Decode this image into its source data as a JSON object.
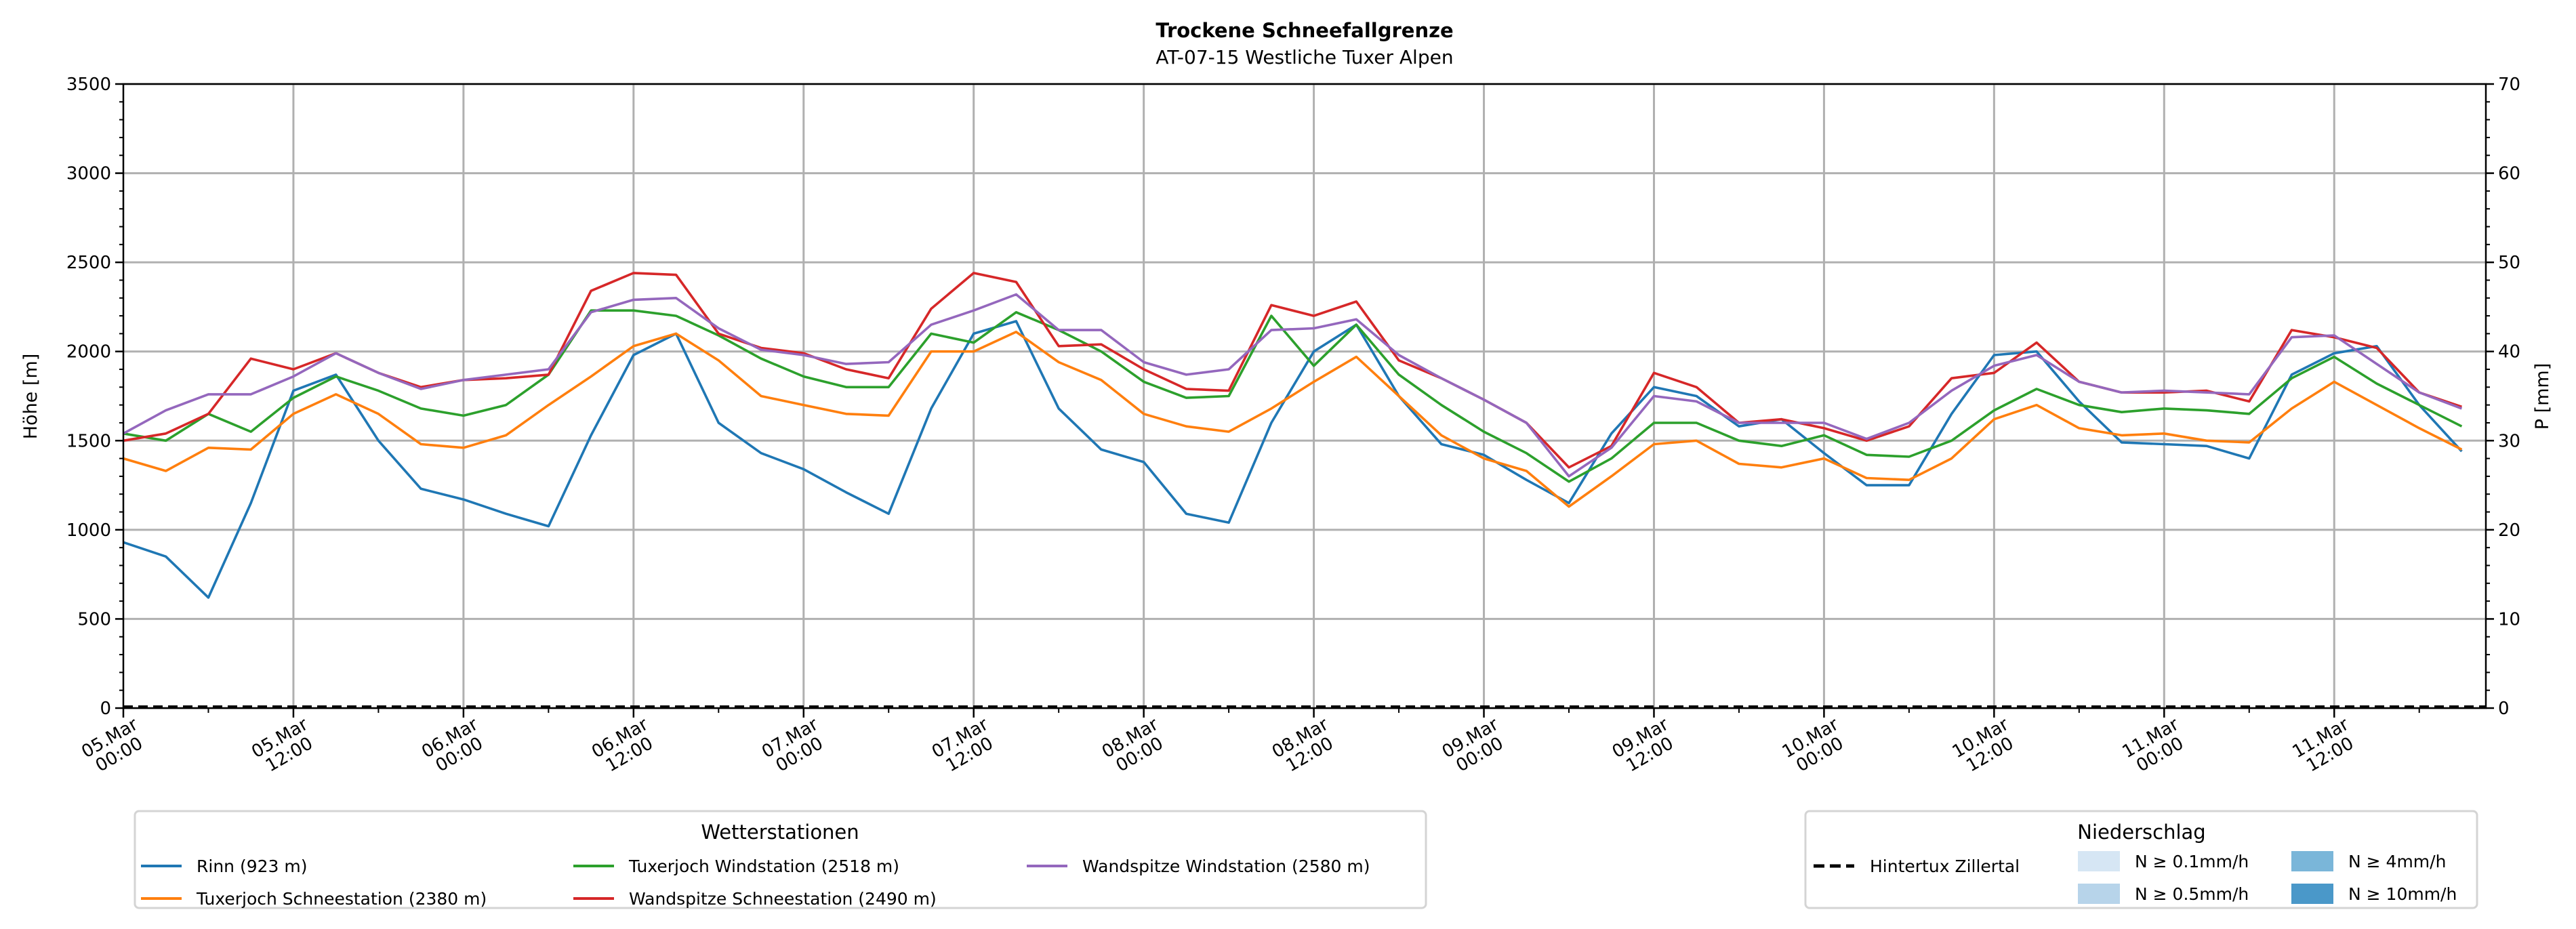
{
  "chart_data": {
    "type": "line",
    "title": "Trockene Schneefallgrenze",
    "subtitle": "AT-07-15 Westliche Tuxer Alpen",
    "ylabel": "Höhe [m]",
    "ylabel_right": "P [mm]",
    "ylim": [
      0,
      3500
    ],
    "ylim_right": [
      0,
      70
    ],
    "yticks": [
      "0",
      "500",
      "1000",
      "1500",
      "2000",
      "2500",
      "3000",
      "3500"
    ],
    "yticks_right": [
      "0",
      "10",
      "20",
      "30",
      "40",
      "50",
      "60",
      "70"
    ],
    "x_unit": "hours since 05.Mar 00:00",
    "xlim": [
      0,
      166.7
    ],
    "xticks": [
      {
        "day": "05.Mar",
        "time": "00:00"
      },
      {
        "day": "05.Mar",
        "time": "12:00"
      },
      {
        "day": "06.Mar",
        "time": "00:00"
      },
      {
        "day": "06.Mar",
        "time": "12:00"
      },
      {
        "day": "07.Mar",
        "time": "00:00"
      },
      {
        "day": "07.Mar",
        "time": "12:00"
      },
      {
        "day": "08.Mar",
        "time": "00:00"
      },
      {
        "day": "08.Mar",
        "time": "12:00"
      },
      {
        "day": "09.Mar",
        "time": "00:00"
      },
      {
        "day": "09.Mar",
        "time": "12:00"
      },
      {
        "day": "10.Mar",
        "time": "00:00"
      },
      {
        "day": "10.Mar",
        "time": "12:00"
      },
      {
        "day": "11.Mar",
        "time": "00:00"
      },
      {
        "day": "11.Mar",
        "time": "12:00"
      }
    ],
    "grid": true,
    "x_step_hours": 3,
    "series": [
      {
        "name": "Rinn (923 m)",
        "color": "#1f77b4",
        "values": [
          930,
          850,
          620,
          1150,
          1780,
          1870,
          1500,
          1230,
          1170,
          1090,
          1020,
          1530,
          1980,
          2100,
          1600,
          1430,
          1340,
          1210,
          1090,
          1680,
          2100,
          2170,
          1680,
          1450,
          1380,
          1090,
          1040,
          1600,
          2000,
          2150,
          1750,
          1480,
          1420,
          1280,
          1150,
          1540,
          1800,
          1750,
          1580,
          1620,
          1430,
          1250,
          1250,
          1650,
          1980,
          2000,
          1720,
          1490,
          1480,
          1470,
          1400,
          1870,
          1990,
          2030,
          1700,
          1440
        ]
      },
      {
        "name": "Tuxerjoch Schneestation (2380 m)",
        "color": "#ff7f0e",
        "values": [
          1400,
          1330,
          1460,
          1450,
          1650,
          1760,
          1650,
          1480,
          1460,
          1530,
          1700,
          1860,
          2030,
          2100,
          1950,
          1750,
          1700,
          1650,
          1640,
          2000,
          2000,
          2110,
          1940,
          1840,
          1650,
          1580,
          1550,
          1680,
          1830,
          1970,
          1750,
          1530,
          1400,
          1330,
          1130,
          1300,
          1480,
          1500,
          1370,
          1350,
          1400,
          1290,
          1280,
          1400,
          1620,
          1700,
          1570,
          1530,
          1540,
          1500,
          1490,
          1680,
          1830,
          1700,
          1570,
          1450
        ]
      },
      {
        "name": "Tuxerjoch Windstation (2518 m)",
        "color": "#2ca02c",
        "values": [
          1540,
          1500,
          1650,
          1550,
          1740,
          1860,
          1780,
          1680,
          1640,
          1700,
          1870,
          2230,
          2230,
          2200,
          2090,
          1960,
          1860,
          1800,
          1800,
          2100,
          2050,
          2220,
          2120,
          2000,
          1830,
          1740,
          1750,
          2200,
          1920,
          2150,
          1870,
          1700,
          1550,
          1430,
          1270,
          1400,
          1600,
          1600,
          1500,
          1470,
          1530,
          1420,
          1410,
          1500,
          1670,
          1790,
          1700,
          1660,
          1680,
          1670,
          1650,
          1850,
          1970,
          1820,
          1700,
          1580
        ]
      },
      {
        "name": "Wandspitze Schneestation (2490 m)",
        "color": "#d62728",
        "values": [
          1500,
          1540,
          1650,
          1960,
          1900,
          1990,
          1880,
          1800,
          1840,
          1850,
          1870,
          2340,
          2440,
          2430,
          2100,
          2020,
          1990,
          1900,
          1850,
          2240,
          2440,
          2390,
          2030,
          2040,
          1900,
          1790,
          1780,
          2260,
          2200,
          2280,
          1950,
          1850,
          1730,
          1600,
          1350,
          1470,
          1880,
          1800,
          1600,
          1620,
          1570,
          1500,
          1580,
          1850,
          1880,
          2050,
          1830,
          1770,
          1770,
          1780,
          1720,
          2120,
          2080,
          2020,
          1770,
          1690
        ]
      },
      {
        "name": "Wandspitze Windstation (2580 m)",
        "color": "#9467bd",
        "values": [
          1540,
          1670,
          1760,
          1760,
          1860,
          1990,
          1880,
          1790,
          1840,
          1870,
          1900,
          2220,
          2290,
          2300,
          2130,
          2010,
          1980,
          1930,
          1940,
          2150,
          2230,
          2320,
          2120,
          2120,
          1940,
          1870,
          1900,
          2120,
          2130,
          2180,
          1980,
          1850,
          1730,
          1600,
          1300,
          1460,
          1750,
          1720,
          1600,
          1600,
          1600,
          1510,
          1600,
          1780,
          1920,
          1980,
          1830,
          1770,
          1780,
          1770,
          1760,
          2080,
          2090,
          1930,
          1770,
          1680
        ]
      }
    ],
    "precip_series": {
      "name": "Hintertux Zillertal",
      "color": "#000000",
      "style": "dashed",
      "values_mm": [
        0,
        0
      ]
    },
    "legend_stations": {
      "title": "Wetterstationen",
      "placement": "bottom-left"
    },
    "legend_precip": {
      "title": "Niederschlag",
      "placement": "bottom-right",
      "entries": [
        {
          "label": "N ≥ 0.1mm/h",
          "color": "#d6e6f4"
        },
        {
          "label": "N ≥ 0.5mm/h",
          "color": "#b7d4ea"
        },
        {
          "label": "N ≥ 4mm/h",
          "color": "#7ab6d9"
        },
        {
          "label": "N ≥ 10mm/h",
          "color": "#4a98c9"
        }
      ]
    }
  }
}
